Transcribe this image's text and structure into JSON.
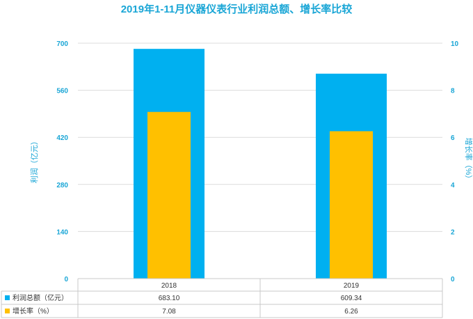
{
  "chart_data": {
    "type": "bar",
    "title": "2019年1-11月仪器仪表行业利润总额、增长率比较",
    "categories": [
      "2018",
      "2019"
    ],
    "series": [
      {
        "name": "利润总额（亿元）",
        "values": [
          683.1,
          609.34
        ],
        "color": "#00b0f0",
        "axis": "left"
      },
      {
        "name": "增长率（%）",
        "values": [
          7.08,
          6.26
        ],
        "color": "#ffc000",
        "axis": "right"
      }
    ],
    "table_values": [
      [
        "683.10",
        "609.34"
      ],
      [
        "7.08",
        "6.26"
      ]
    ],
    "ylabel": "利润（亿元）",
    "y2label": "增长率（%）",
    "ylim": [
      0,
      700
    ],
    "yticks": [
      "0",
      "140",
      "280",
      "420",
      "560",
      "700"
    ],
    "y2lim": [
      0,
      10
    ],
    "y2ticks": [
      "0",
      "2",
      "4",
      "6",
      "8",
      "10"
    ],
    "grid": true,
    "legend": "data-table"
  }
}
